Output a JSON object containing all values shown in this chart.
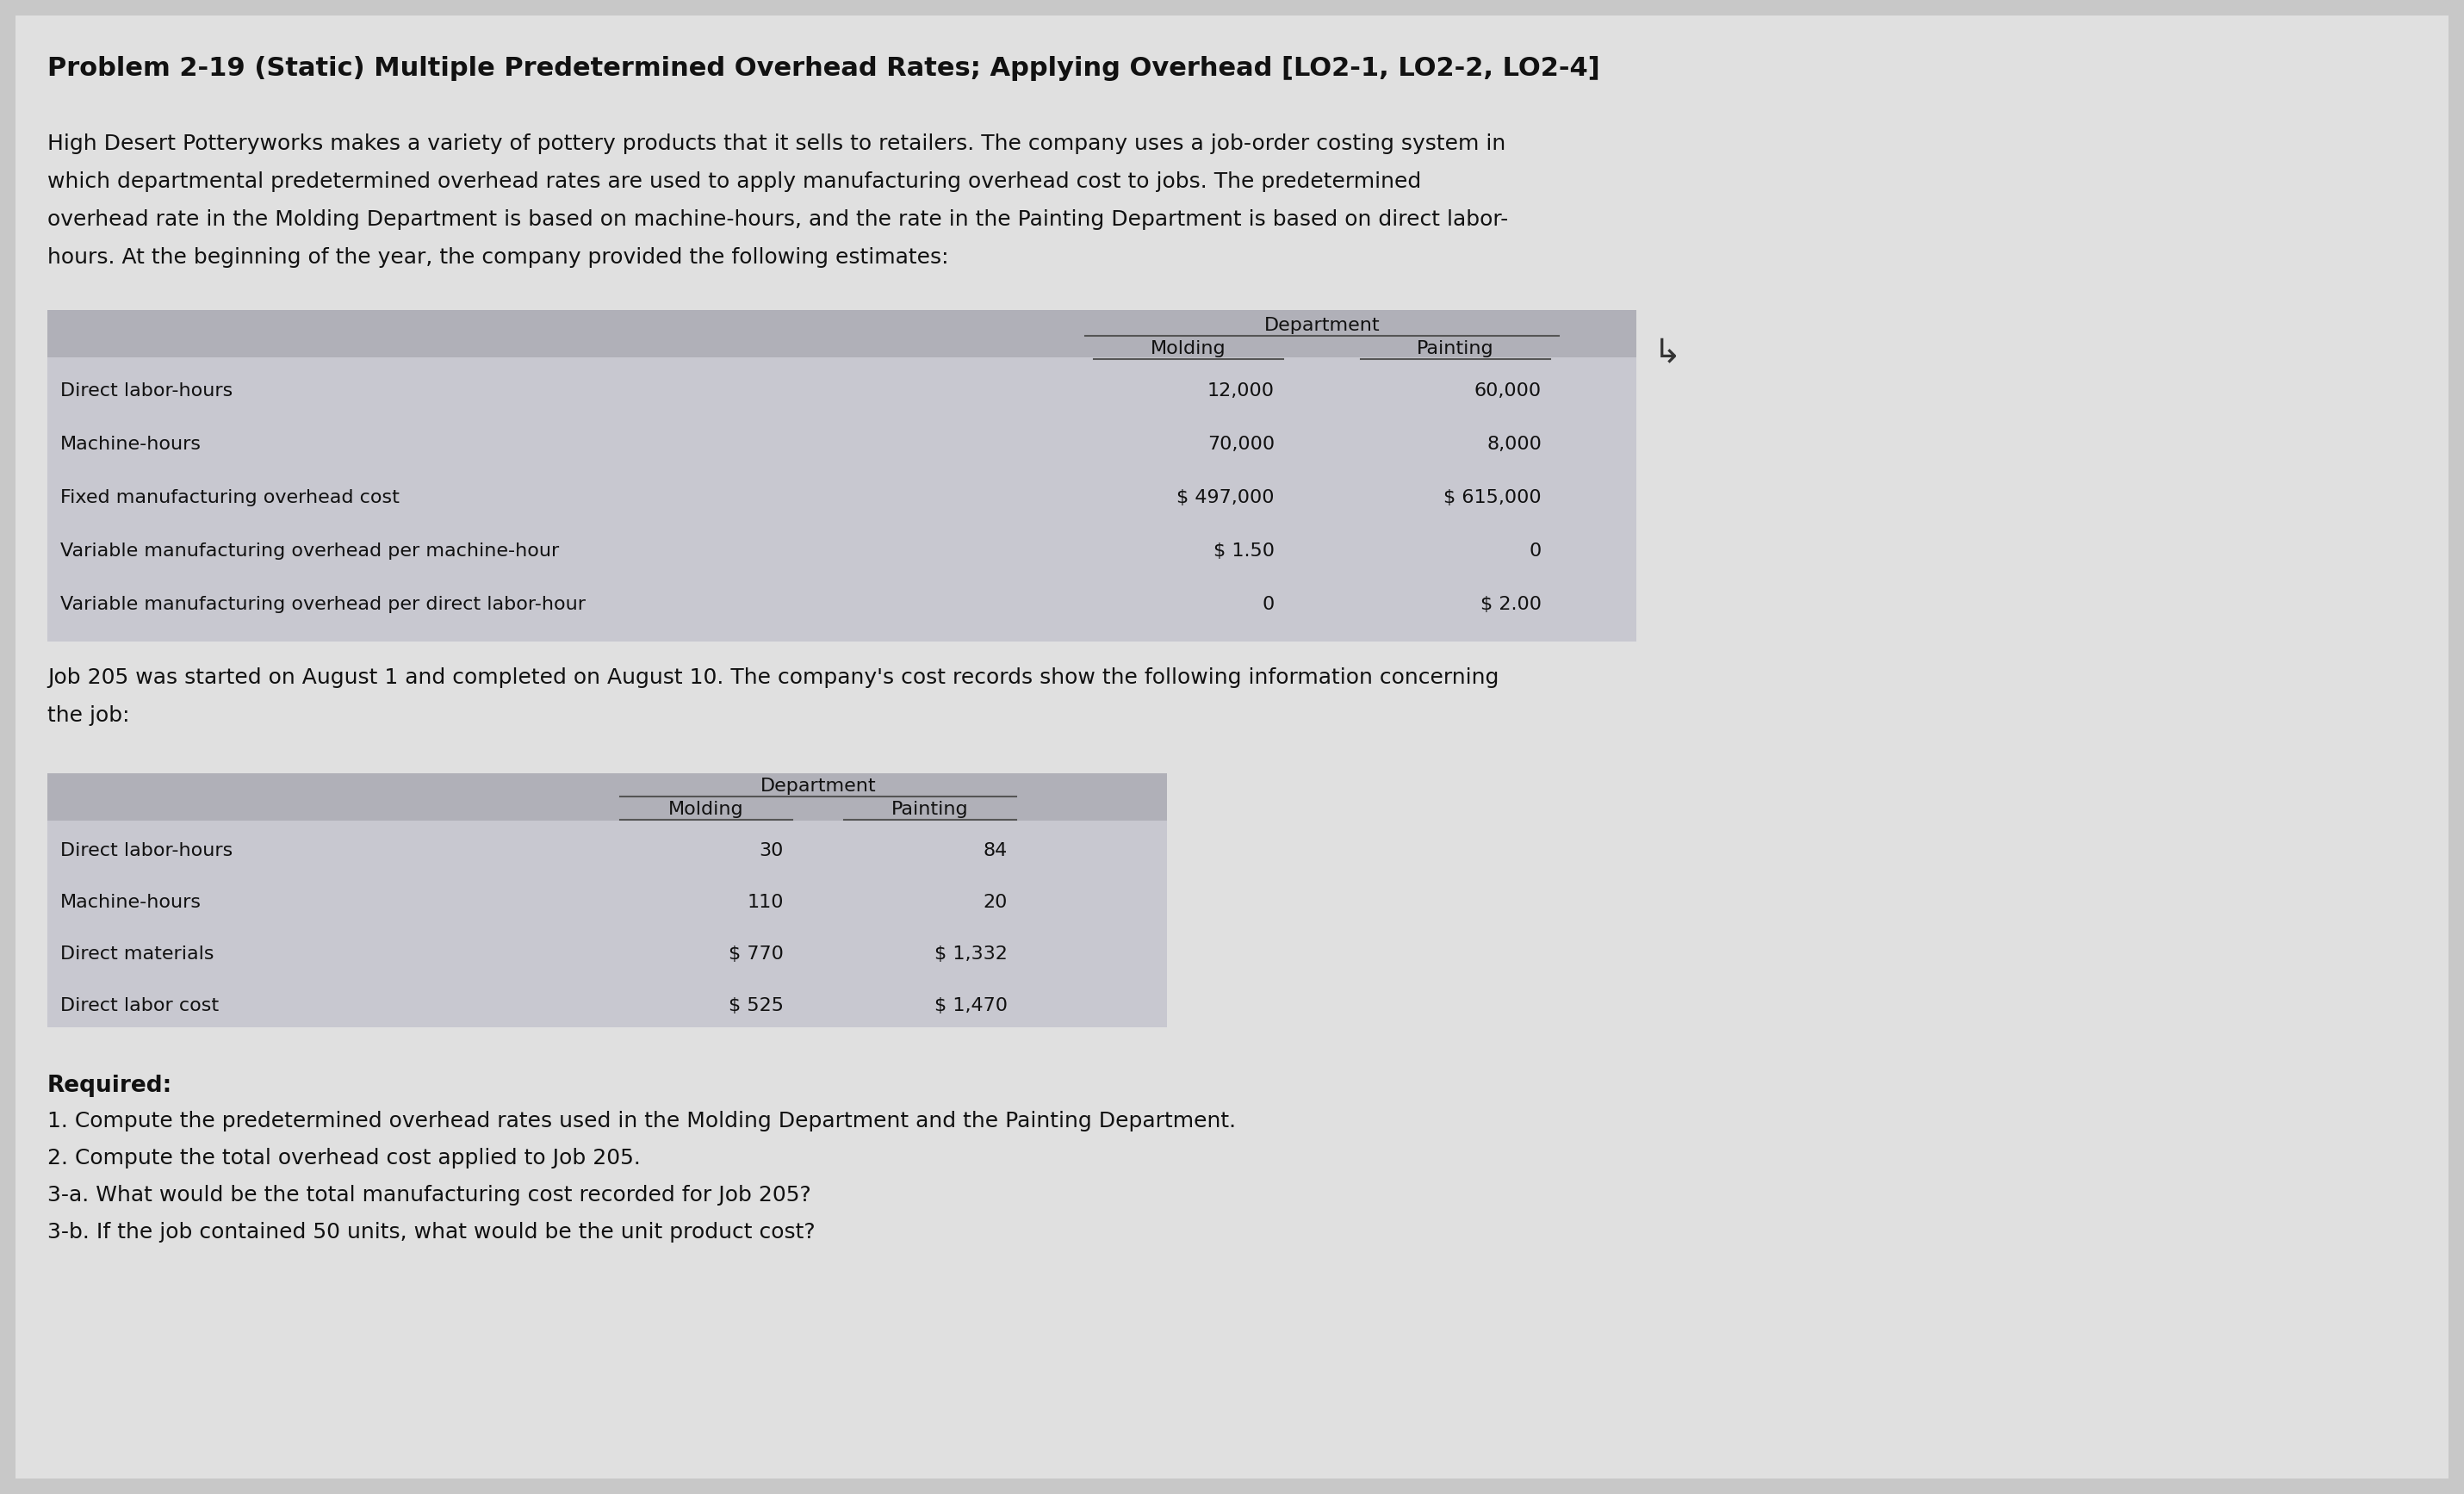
{
  "bg_color": "#c8c8c8",
  "panel_color": "#e0e0e0",
  "table1_header_color": "#b0b0b8",
  "table1_body_color": "#c8c8d0",
  "table2_header_color": "#b0b0b8",
  "table2_body_color": "#c8c8d0",
  "title": "Problem 2-19 (Static) Multiple Predetermined Overhead Rates; Applying Overhead [LO2-1, LO2-2, LO2-4]",
  "intro_lines": [
    "High Desert Potteryworks makes a variety of pottery products that it sells to retailers. The company uses a job-order costing system in",
    "which departmental predetermined overhead rates are used to apply manufacturing overhead cost to jobs. The predetermined",
    "overhead rate in the Molding Department is based on machine-hours, and the rate in the Painting Department is based on direct labor-",
    "hours. At the beginning of the year, the company provided the following estimates:"
  ],
  "table1_header": "Department",
  "table1_cols": [
    "Molding",
    "Painting"
  ],
  "table1_rows": [
    [
      "Direct labor-hours",
      "12,000",
      "60,000"
    ],
    [
      "Machine-hours",
      "70,000",
      "8,000"
    ],
    [
      "Fixed manufacturing overhead cost",
      "$ 497,000",
      "$ 615,000"
    ],
    [
      "Variable manufacturing overhead per machine-hour",
      "$ 1.50",
      "0"
    ],
    [
      "Variable manufacturing overhead per direct labor-hour",
      "0",
      "$ 2.00"
    ]
  ],
  "job_lines": [
    "Job 205 was started on August 1 and completed on August 10. The company's cost records show the following information concerning",
    "the job:"
  ],
  "table2_header": "Department",
  "table2_cols": [
    "Molding",
    "Painting"
  ],
  "table2_rows": [
    [
      "Direct labor-hours",
      "30",
      "84"
    ],
    [
      "Machine-hours",
      "110",
      "20"
    ],
    [
      "Direct materials",
      "$ 770",
      "$ 1,332"
    ],
    [
      "Direct labor cost",
      "$ 525",
      "$ 1,470"
    ]
  ],
  "required_label": "Required:",
  "required_lines": [
    "1. Compute the predetermined overhead rates used in the Molding Department and the Painting Department.",
    "2. Compute the total overhead cost applied to Job 205.",
    "3-a. What would be the total manufacturing cost recorded for Job 205?",
    "3-b. If the job contained 50 units, what would be the unit product cost?"
  ]
}
